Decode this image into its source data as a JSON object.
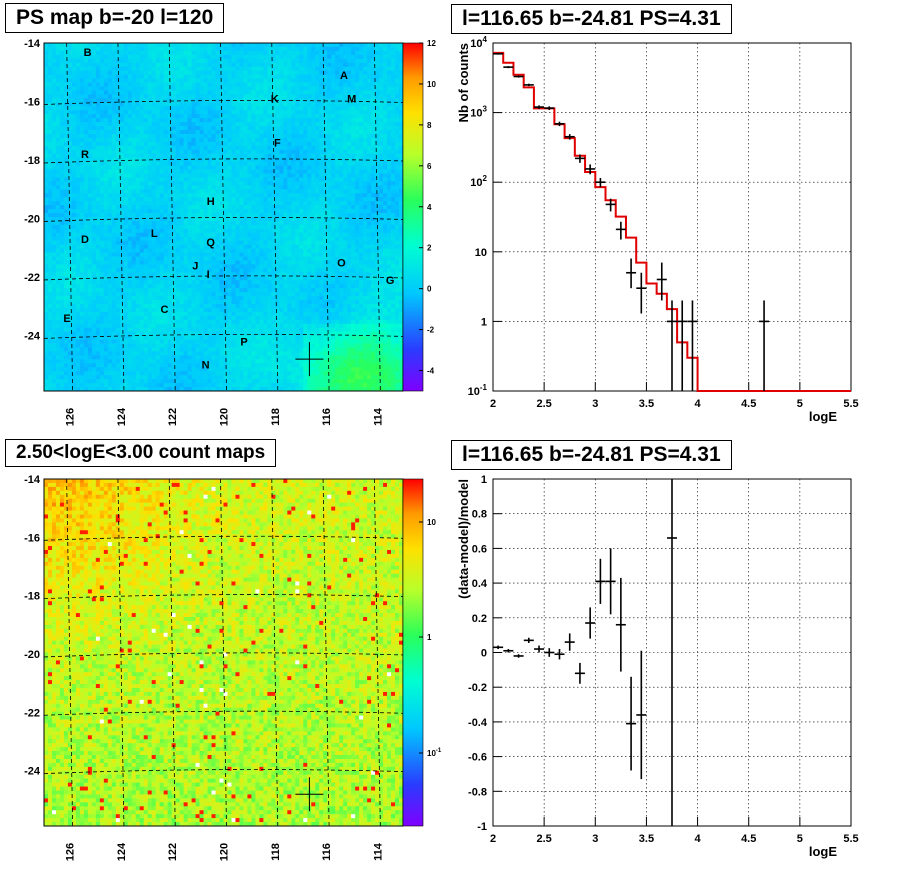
{
  "panels": {
    "tl_title": "PS map b=-20 l=120",
    "tr_title": "l=116.65 b=-24.81 PS=4.31",
    "bl_title": "2.50<logE<3.00 count maps",
    "br_title": "l=116.65 b=-24.81 PS=4.31"
  },
  "chart_data": [
    {
      "type": "heatmap",
      "title": "PS map b=-20 l=120",
      "xlim": [
        127,
        113
      ],
      "ylim": [
        -25.9,
        -14
      ],
      "x_ticks": [
        "126",
        "124",
        "122",
        "120",
        "118",
        "116",
        "114"
      ],
      "y_ticks": [
        "-14",
        "-16",
        "-18",
        "-20",
        "-22",
        "-24"
      ],
      "colorbar_ticks": [
        "12",
        "10",
        "8",
        "6",
        "4",
        "2",
        "0",
        "-2",
        "-4"
      ],
      "colorbar_range": [
        -5,
        12
      ],
      "sources": [
        {
          "label": "B",
          "l": 125.3,
          "b": -14.3
        },
        {
          "label": "A",
          "l": 115.3,
          "b": -15.1
        },
        {
          "label": "K",
          "l": 118.0,
          "b": -15.9
        },
        {
          "label": "M",
          "l": 115.0,
          "b": -15.9
        },
        {
          "label": "R",
          "l": 125.4,
          "b": -17.8
        },
        {
          "label": "F",
          "l": 117.9,
          "b": -17.4
        },
        {
          "label": "H",
          "l": 120.5,
          "b": -19.4
        },
        {
          "label": "D",
          "l": 125.4,
          "b": -20.7
        },
        {
          "label": "L",
          "l": 122.7,
          "b": -20.5
        },
        {
          "label": "Q",
          "l": 120.5,
          "b": -20.8
        },
        {
          "label": "J",
          "l": 121.1,
          "b": -21.6
        },
        {
          "label": "I",
          "l": 120.6,
          "b": -21.9
        },
        {
          "label": "O",
          "l": 115.4,
          "b": -21.5
        },
        {
          "label": "G",
          "l": 113.5,
          "b": -22.1
        },
        {
          "label": "C",
          "l": 122.3,
          "b": -23.1
        },
        {
          "label": "E",
          "l": 126.1,
          "b": -23.4
        },
        {
          "label": "P",
          "l": 119.2,
          "b": -24.2
        },
        {
          "label": "N",
          "l": 120.7,
          "b": -25.0
        }
      ],
      "marker": {
        "l": 116.65,
        "b": -24.81
      }
    },
    {
      "type": "line",
      "title": "l=116.65 b=-24.81 PS=4.31",
      "xlabel": "logE",
      "ylabel": "Nb of counts",
      "xlim": [
        2,
        5.5
      ],
      "ylim": [
        0.1,
        10000
      ],
      "yscale": "log",
      "x_ticks": [
        "2",
        "2.5",
        "3",
        "3.5",
        "4",
        "4.5",
        "5",
        "5.5"
      ],
      "y_ticks": [
        "10^-1",
        "1",
        "10",
        "10^2",
        "10^3",
        "10^4"
      ],
      "grid": true,
      "bin_edges": [
        2.0,
        2.1,
        2.2,
        2.3,
        2.4,
        2.5,
        2.6,
        2.7,
        2.8,
        2.9,
        3.0,
        3.1,
        3.2,
        3.3,
        3.4,
        3.5,
        3.6,
        3.7,
        3.8,
        3.9,
        4.0,
        4.1,
        4.2,
        4.3,
        4.4,
        4.5,
        4.6,
        4.7,
        4.8,
        4.9,
        5.0,
        5.1,
        5.2,
        5.3,
        5.4,
        5.5
      ],
      "model": [
        7200,
        5200,
        3500,
        2300,
        1150,
        1150,
        680,
        430,
        240,
        140,
        85,
        55,
        32,
        16,
        7,
        3.5,
        2.5,
        1.5,
        0.5,
        0.3,
        0.1,
        0.1,
        0.1,
        0.1,
        0.1,
        0.1,
        0.1,
        0.1,
        0.1,
        0.1,
        0.1,
        0.1,
        0.1,
        0.1,
        0.1
      ],
      "data": [
        {
          "x": 2.05,
          "y": 7000,
          "lo": 6800,
          "hi": 7200
        },
        {
          "x": 2.15,
          "y": 4500,
          "lo": 4350,
          "hi": 4650
        },
        {
          "x": 2.25,
          "y": 3300,
          "lo": 3180,
          "hi": 3420
        },
        {
          "x": 2.35,
          "y": 2500,
          "lo": 2400,
          "hi": 2600
        },
        {
          "x": 2.45,
          "y": 1200,
          "lo": 1130,
          "hi": 1270
        },
        {
          "x": 2.55,
          "y": 1160,
          "lo": 1090,
          "hi": 1230
        },
        {
          "x": 2.65,
          "y": 690,
          "lo": 640,
          "hi": 740
        },
        {
          "x": 2.75,
          "y": 450,
          "lo": 410,
          "hi": 490
        },
        {
          "x": 2.85,
          "y": 220,
          "lo": 190,
          "hi": 250
        },
        {
          "x": 2.95,
          "y": 155,
          "lo": 130,
          "hi": 180
        },
        {
          "x": 3.05,
          "y": 100,
          "lo": 85,
          "hi": 115
        },
        {
          "x": 3.15,
          "y": 48,
          "lo": 38,
          "hi": 58
        },
        {
          "x": 3.25,
          "y": 21,
          "lo": 15,
          "hi": 27
        },
        {
          "x": 3.35,
          "y": 5,
          "lo": 3,
          "hi": 8
        },
        {
          "x": 3.45,
          "y": 3,
          "lo": 1.3,
          "hi": 5
        },
        {
          "x": 3.65,
          "y": 4,
          "lo": 2,
          "hi": 7
        },
        {
          "x": 3.75,
          "y": 1,
          "lo": 0.1,
          "hi": 2
        },
        {
          "x": 3.85,
          "y": 1,
          "lo": 0.1,
          "hi": 2
        },
        {
          "x": 3.95,
          "y": 1,
          "lo": 0.1,
          "hi": 2
        },
        {
          "x": 4.65,
          "y": 1,
          "lo": 0.1,
          "hi": 2
        }
      ]
    },
    {
      "type": "heatmap",
      "title": "2.50<logE<3.00 count maps",
      "xlim": [
        127,
        113
      ],
      "ylim": [
        -25.9,
        -14
      ],
      "x_ticks": [
        "126",
        "124",
        "122",
        "120",
        "118",
        "116",
        "114"
      ],
      "y_ticks": [
        "-14",
        "-16",
        "-18",
        "-20",
        "-22",
        "-24"
      ],
      "colorbar_ticks": [
        "10",
        "1",
        "10^-1"
      ],
      "colorbar_scale": "log",
      "marker": {
        "l": 116.65,
        "b": -24.81
      }
    },
    {
      "type": "scatter",
      "title": "l=116.65 b=-24.81 PS=4.31",
      "xlabel": "logE",
      "ylabel": "(data-model)/model",
      "xlim": [
        2,
        5.5
      ],
      "ylim": [
        -1,
        1
      ],
      "x_ticks": [
        "2",
        "2.5",
        "3",
        "3.5",
        "4",
        "4.5",
        "5",
        "5.5"
      ],
      "y_ticks": [
        "-1",
        "-0.8",
        "-0.6",
        "-0.4",
        "-0.2",
        "0",
        "0.2",
        "0.4",
        "0.6",
        "0.8",
        "1"
      ],
      "grid": true,
      "points": [
        {
          "x": 2.05,
          "y": 0.03,
          "err": 0.01
        },
        {
          "x": 2.15,
          "y": 0.01,
          "err": 0.01
        },
        {
          "x": 2.25,
          "y": -0.02,
          "err": 0.01
        },
        {
          "x": 2.35,
          "y": 0.07,
          "err": 0.015
        },
        {
          "x": 2.45,
          "y": 0.02,
          "err": 0.02
        },
        {
          "x": 2.55,
          "y": 0.0,
          "err": 0.025
        },
        {
          "x": 2.65,
          "y": -0.01,
          "err": 0.03
        },
        {
          "x": 2.75,
          "y": 0.06,
          "err": 0.05
        },
        {
          "x": 2.85,
          "y": -0.12,
          "err": 0.06
        },
        {
          "x": 2.95,
          "y": 0.17,
          "err": 0.09
        },
        {
          "x": 3.05,
          "y": 0.41,
          "err": 0.13
        },
        {
          "x": 3.15,
          "y": 0.41,
          "err": 0.19
        },
        {
          "x": 3.25,
          "y": 0.16,
          "err": 0.27
        },
        {
          "x": 3.35,
          "y": -0.41,
          "err": 0.27
        },
        {
          "x": 3.45,
          "y": -0.36,
          "err": 0.37
        },
        {
          "x": 3.75,
          "y": 0.66,
          "err": 1.7
        }
      ]
    }
  ]
}
